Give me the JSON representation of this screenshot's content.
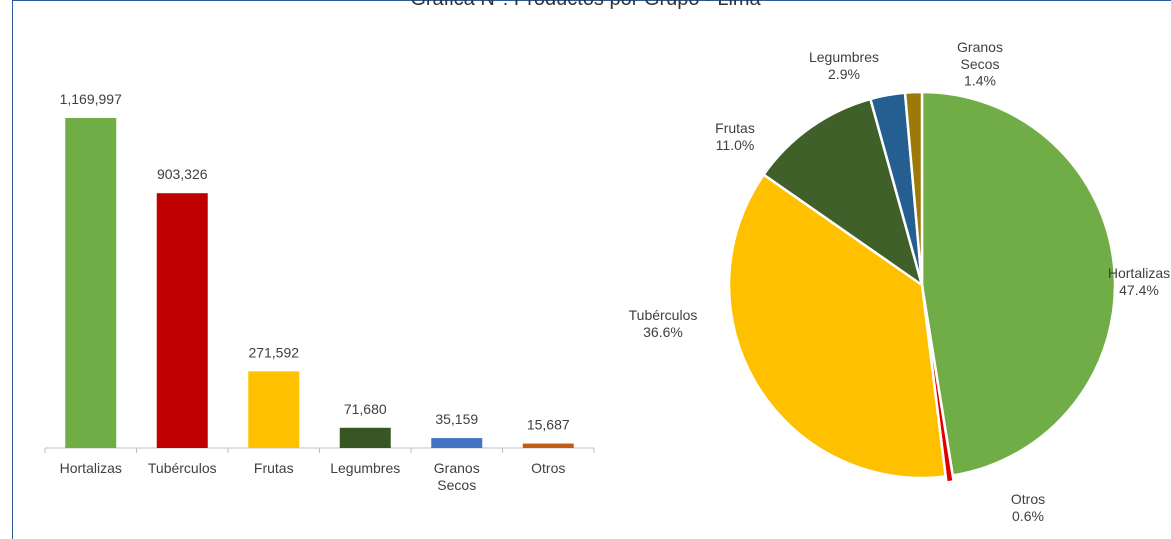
{
  "chart_data": [
    {
      "type": "bar",
      "title": "Gráfica N°: Productos por Grupo - Lima",
      "categories": [
        [
          "Hortalizas"
        ],
        [
          "Tubérculos"
        ],
        [
          "Frutas"
        ],
        [
          "Legumbres"
        ],
        [
          "Granos",
          "Secos"
        ],
        [
          "Otros"
        ]
      ],
      "values": [
        1169997,
        903326,
        271592,
        71680,
        35159,
        15687
      ],
      "value_labels": [
        "1,169,997",
        "903,326",
        "271,592",
        "71,680",
        "35,159",
        "15,687"
      ],
      "colors": [
        "#70AD47",
        "#C00000",
        "#FFC000",
        "#375623",
        "#4472C4",
        "#C55A11"
      ],
      "xlabel": "",
      "ylabel": "",
      "grid": false
    },
    {
      "type": "pie",
      "slices": [
        {
          "label": [
            "Hortalizas"
          ],
          "pct_label": "47.4%",
          "value": 47.4,
          "color": "#70AD47"
        },
        {
          "label": [
            "Otros"
          ],
          "pct_label": "0.6%",
          "value": 0.6,
          "color": "#E00000"
        },
        {
          "label": [
            "Tubérculos"
          ],
          "pct_label": "36.6%",
          "value": 36.6,
          "color": "#FFC000"
        },
        {
          "label": [
            "Frutas"
          ],
          "pct_label": "11.0%",
          "value": 11.0,
          "color": "#3F6129"
        },
        {
          "label": [
            "Legumbres"
          ],
          "pct_label": "2.9%",
          "value": 2.9,
          "color": "#255E91"
        },
        {
          "label": [
            "Granos",
            "Secos"
          ],
          "pct_label": "1.4%",
          "value": 1.4,
          "color": "#9C7A0A"
        }
      ]
    }
  ]
}
